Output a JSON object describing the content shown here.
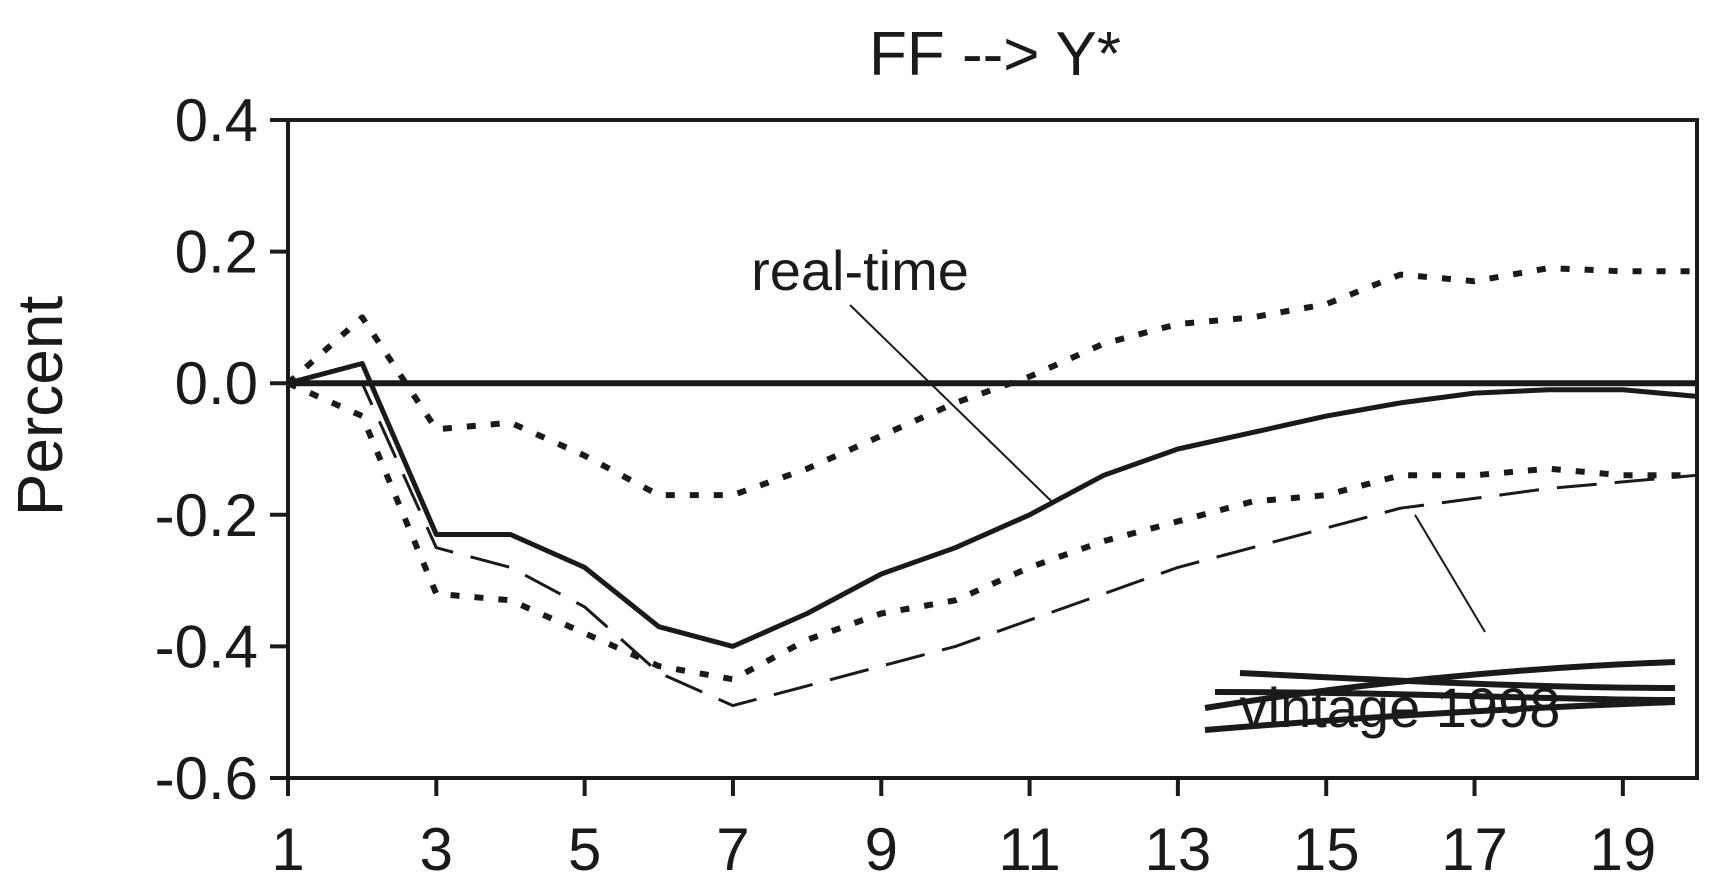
{
  "chart_data": {
    "type": "line",
    "title": "FF --> Y*",
    "xlabel": "",
    "ylabel": "Percent",
    "xlim": [
      1,
      20
    ],
    "ylim": [
      -0.6,
      0.4
    ],
    "x": [
      1,
      2,
      3,
      4,
      5,
      6,
      7,
      8,
      9,
      10,
      11,
      12,
      13,
      14,
      15,
      16,
      17,
      18,
      19,
      20
    ],
    "x_ticks": [
      1,
      3,
      5,
      7,
      9,
      11,
      13,
      15,
      17,
      19
    ],
    "x_tick_labels": [
      "1",
      "3",
      "5",
      "7",
      "9",
      "11",
      "13",
      "15",
      "17",
      "19"
    ],
    "y_ticks": [
      -0.6,
      -0.4,
      -0.2,
      0.0,
      0.2,
      0.4
    ],
    "y_tick_labels": [
      "-0.6",
      "-0.4",
      "-0.2",
      "0.0",
      "0.2",
      "0.4"
    ],
    "grid": false,
    "zero_line": true,
    "series": [
      {
        "style": "solid",
        "color": "#1a1a1a",
        "values": [
          0.0,
          0.03,
          -0.23,
          -0.23,
          -0.28,
          -0.37,
          -0.4,
          -0.35,
          -0.29,
          -0.25,
          -0.2,
          -0.14,
          -0.1,
          -0.075,
          -0.05,
          -0.03,
          -0.015,
          -0.01,
          -0.01,
          -0.02
        ]
      },
      {
        "style": "dotted",
        "color": "#1a1a1a",
        "values": [
          0.0,
          0.1,
          -0.07,
          -0.06,
          -0.11,
          -0.17,
          -0.17,
          -0.13,
          -0.08,
          -0.03,
          0.01,
          0.06,
          0.09,
          0.1,
          0.12,
          0.165,
          0.155,
          0.175,
          0.17,
          0.17
        ]
      },
      {
        "style": "dotted",
        "color": "#1a1a1a",
        "values": [
          0.0,
          -0.05,
          -0.32,
          -0.33,
          -0.38,
          -0.43,
          -0.45,
          -0.39,
          -0.35,
          -0.33,
          -0.28,
          -0.24,
          -0.21,
          -0.18,
          -0.17,
          -0.14,
          -0.14,
          -0.13,
          -0.14,
          -0.14
        ]
      },
      {
        "style": "dashed",
        "color": "#1a1a1a",
        "values": [
          0.0,
          0.0,
          -0.25,
          -0.28,
          -0.34,
          -0.44,
          -0.49,
          -0.46,
          -0.43,
          -0.4,
          -0.36,
          -0.32,
          -0.28,
          -0.25,
          -0.22,
          -0.19,
          -0.175,
          -0.16,
          -0.15,
          -0.14
        ]
      }
    ],
    "annotations": [
      {
        "text": "real-time",
        "points_to": "solid"
      },
      {
        "text": "vintage 1998",
        "points_to": "dashed"
      }
    ]
  }
}
